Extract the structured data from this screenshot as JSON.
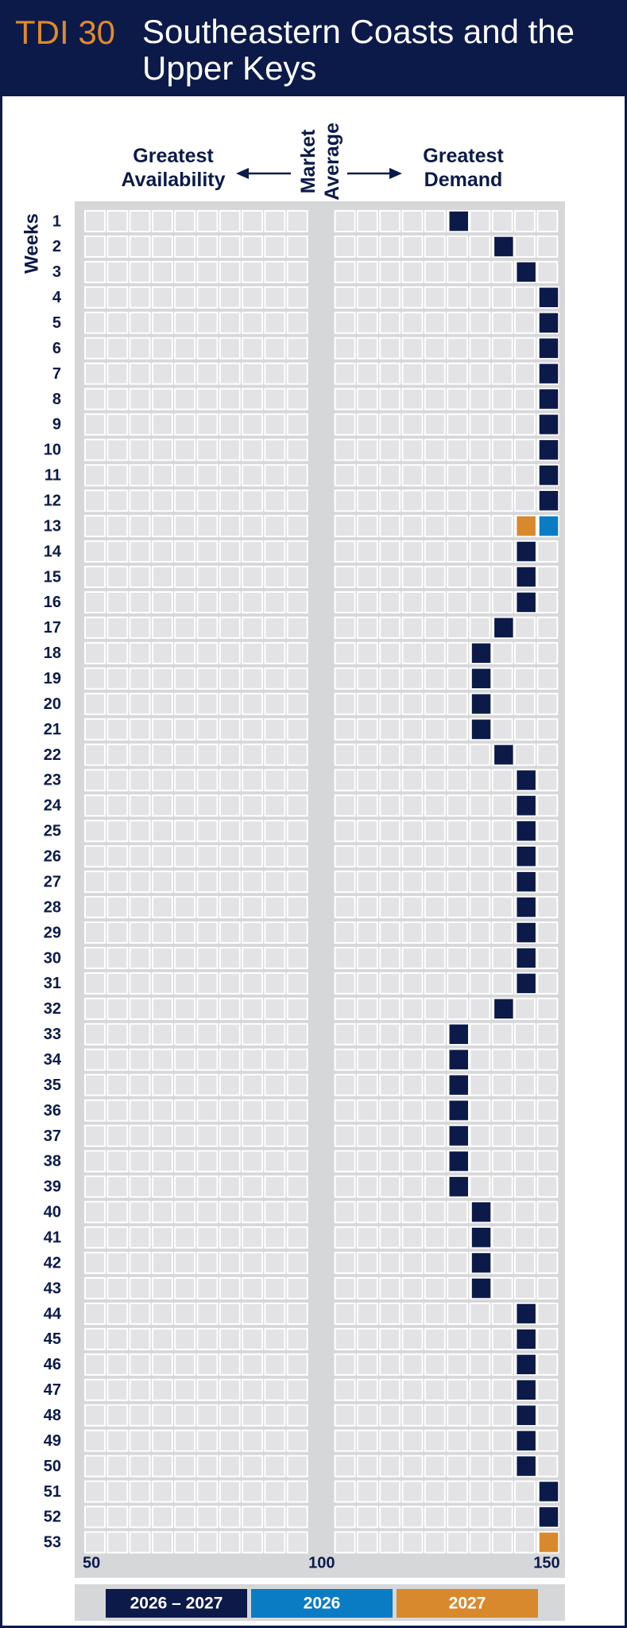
{
  "chart_data": {
    "type": "strip",
    "badge": "TDI 30",
    "title": "Southeastern Coasts and the Upper Keys",
    "annotations": {
      "left": "Greatest Availability",
      "center": "Market Average",
      "right": "Greatest Demand"
    },
    "y_label": "Weeks",
    "categories": [
      "1",
      "2",
      "3",
      "4",
      "5",
      "6",
      "7",
      "8",
      "9",
      "10",
      "11",
      "12",
      "13",
      "14",
      "15",
      "16",
      "17",
      "18",
      "19",
      "20",
      "21",
      "22",
      "23",
      "24",
      "25",
      "26",
      "27",
      "28",
      "29",
      "30",
      "31",
      "32",
      "33",
      "34",
      "35",
      "36",
      "37",
      "38",
      "39",
      "40",
      "41",
      "42",
      "43",
      "44",
      "45",
      "46",
      "47",
      "48",
      "49",
      "50",
      "51",
      "52",
      "53"
    ],
    "xlim": [
      50,
      150
    ],
    "xticks": [
      50,
      100,
      150
    ],
    "series": [
      {
        "name": "2026 – 2027",
        "color": "#0c1a4a",
        "values": [
          127.5,
          137.5,
          142.5,
          147.5,
          147.5,
          147.5,
          147.5,
          147.5,
          147.5,
          147.5,
          147.5,
          147.5,
          null,
          142.5,
          142.5,
          142.5,
          137.5,
          132.5,
          132.5,
          132.5,
          132.5,
          137.5,
          142.5,
          142.5,
          142.5,
          142.5,
          142.5,
          142.5,
          142.5,
          142.5,
          142.5,
          137.5,
          127.5,
          127.5,
          127.5,
          127.5,
          127.5,
          127.5,
          127.5,
          132.5,
          132.5,
          132.5,
          132.5,
          142.5,
          142.5,
          142.5,
          142.5,
          142.5,
          142.5,
          142.5,
          147.5,
          147.5,
          null
        ]
      },
      {
        "name": "2026",
        "color": "#0a7cc4",
        "values": [
          null,
          null,
          null,
          null,
          null,
          null,
          null,
          null,
          null,
          null,
          null,
          null,
          147.5,
          null,
          null,
          null,
          null,
          null,
          null,
          null,
          null,
          null,
          null,
          null,
          null,
          null,
          null,
          null,
          null,
          null,
          null,
          null,
          null,
          null,
          null,
          null,
          null,
          null,
          null,
          null,
          null,
          null,
          null,
          null,
          null,
          null,
          null,
          null,
          null,
          null,
          null,
          null,
          null
        ]
      },
      {
        "name": "2027",
        "color": "#d9892d",
        "values": [
          null,
          null,
          null,
          null,
          null,
          null,
          null,
          null,
          null,
          null,
          null,
          null,
          142.5,
          null,
          null,
          null,
          null,
          null,
          null,
          null,
          null,
          null,
          null,
          null,
          null,
          null,
          null,
          null,
          null,
          null,
          null,
          null,
          null,
          null,
          null,
          null,
          null,
          null,
          null,
          null,
          null,
          null,
          null,
          null,
          null,
          null,
          null,
          null,
          null,
          null,
          null,
          null,
          147.5
        ]
      }
    ]
  }
}
